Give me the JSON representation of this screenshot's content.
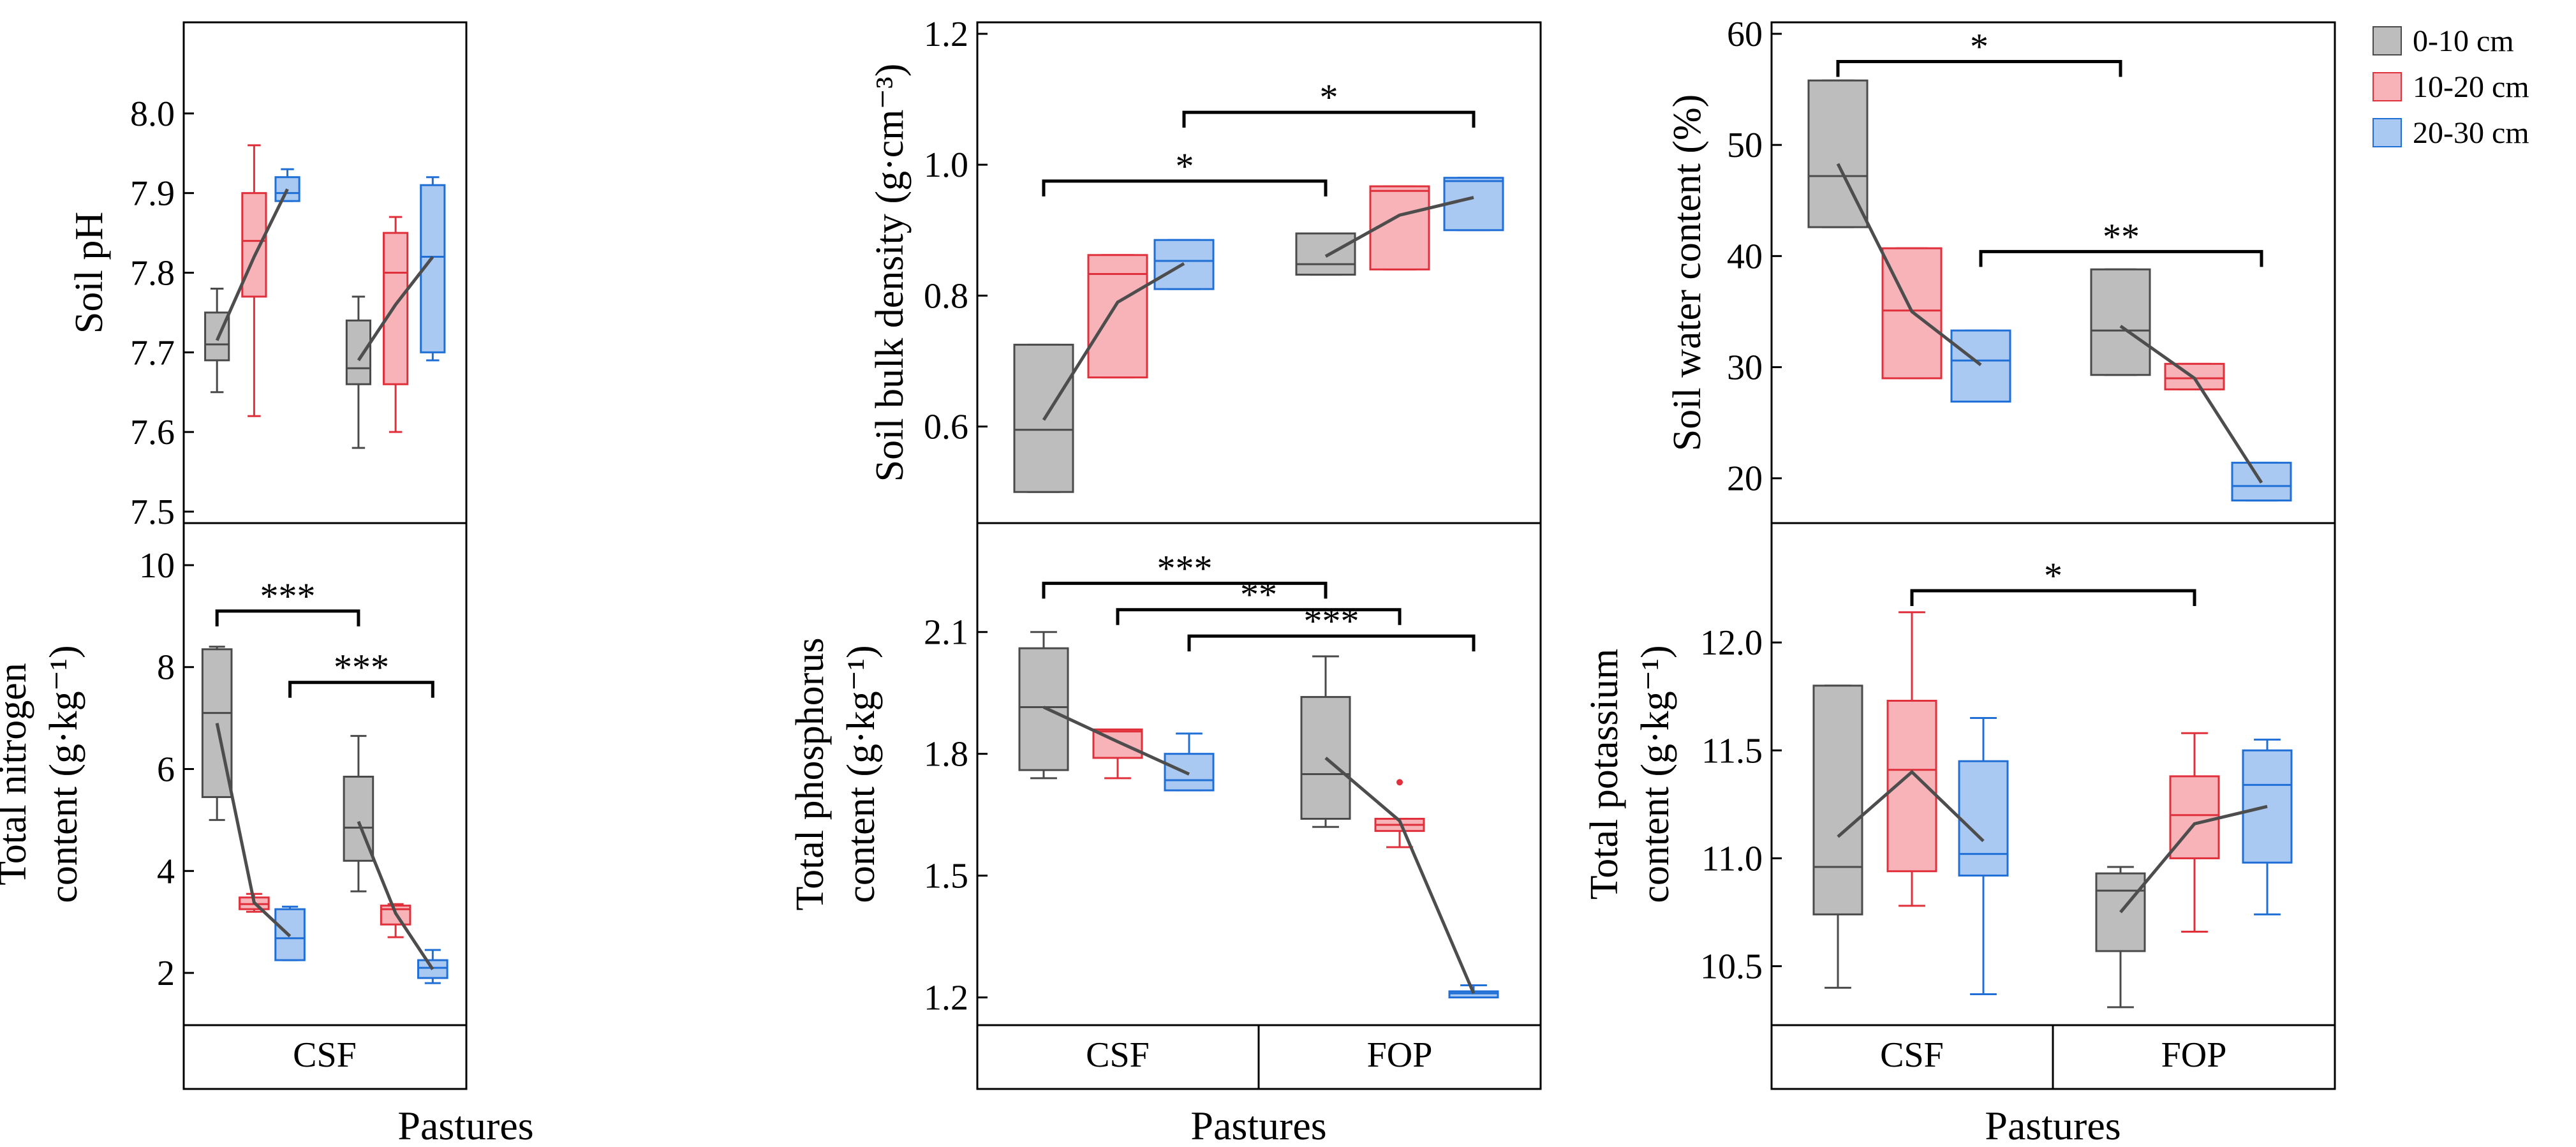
{
  "x_axis_title": "Pastures",
  "groups": [
    "CSF",
    "FOP"
  ],
  "legend": [
    {
      "label": "0-10 cm",
      "fill": "#bdbdbd",
      "stroke": "#4a4a4a"
    },
    {
      "label": "10-20 cm",
      "fill": "#f7b3b8",
      "stroke": "#e0303b"
    },
    {
      "label": "20-30 cm",
      "fill": "#a9c9f3",
      "stroke": "#1f6fd6"
    }
  ],
  "trend_line_color": "#4d4d4d",
  "chart_data": [
    {
      "type": "box",
      "id": "ph",
      "ylabel": [
        "Soil pH"
      ],
      "ylim": [
        7.5,
        8.1
      ],
      "ticks": [
        7.5,
        7.6,
        7.7,
        7.8,
        7.9,
        8.0
      ],
      "tick_labels": [
        "7.5",
        "7.6",
        "7.7",
        "7.8",
        "7.9",
        "8.0"
      ],
      "boxes": [
        {
          "group": "CSF",
          "depth": "0-10 cm",
          "min": 7.65,
          "q1": 7.69,
          "median": 7.71,
          "q3": 7.75,
          "max": 7.78,
          "mean": 7.715
        },
        {
          "group": "CSF",
          "depth": "10-20 cm",
          "min": 7.62,
          "q1": 7.77,
          "median": 7.84,
          "q3": 7.9,
          "max": 7.96,
          "mean": 7.82
        },
        {
          "group": "CSF",
          "depth": "20-30 cm",
          "min": 7.89,
          "q1": 7.89,
          "median": 7.9,
          "q3": 7.92,
          "max": 7.93,
          "mean": 7.905
        },
        {
          "group": "FOP",
          "depth": "0-10 cm",
          "min": 7.58,
          "q1": 7.66,
          "median": 7.68,
          "q3": 7.74,
          "max": 7.77,
          "mean": 7.69
        },
        {
          "group": "FOP",
          "depth": "10-20 cm",
          "min": 7.6,
          "q1": 7.66,
          "median": 7.8,
          "q3": 7.85,
          "max": 7.87,
          "mean": 7.76
        },
        {
          "group": "FOP",
          "depth": "20-30 cm",
          "min": 7.69,
          "q1": 7.7,
          "median": 7.82,
          "q3": 7.91,
          "max": 7.92,
          "mean": 7.82
        }
      ],
      "outliers": [],
      "brackets": []
    },
    {
      "type": "box",
      "id": "bd",
      "ylabel": [
        "Soil bulk density (g·cm⁻³)"
      ],
      "ylim": [
        0.47,
        1.2
      ],
      "ticks": [
        0.6,
        0.8,
        1.0,
        1.2
      ],
      "tick_labels": [
        "0.6",
        "0.8",
        "1.0",
        "1.2"
      ],
      "boxes": [
        {
          "group": "CSF",
          "depth": "0-10 cm",
          "min": 0.5,
          "q1": 0.5,
          "median": 0.595,
          "q3": 0.725,
          "max": 0.725,
          "mean": 0.61
        },
        {
          "group": "CSF",
          "depth": "10-20 cm",
          "min": 0.675,
          "q1": 0.675,
          "median": 0.833,
          "q3": 0.862,
          "max": 0.862,
          "mean": 0.79
        },
        {
          "group": "CSF",
          "depth": "20-30 cm",
          "min": 0.81,
          "q1": 0.81,
          "median": 0.853,
          "q3": 0.885,
          "max": 0.885,
          "mean": 0.849
        },
        {
          "group": "FOP",
          "depth": "0-10 cm",
          "min": 0.832,
          "q1": 0.832,
          "median": 0.848,
          "q3": 0.895,
          "max": 0.895,
          "mean": 0.86
        },
        {
          "group": "FOP",
          "depth": "10-20 cm",
          "min": 0.84,
          "q1": 0.84,
          "median": 0.96,
          "q3": 0.967,
          "max": 0.967,
          "mean": 0.923
        },
        {
          "group": "FOP",
          "depth": "20-30 cm",
          "min": 0.9,
          "q1": 0.9,
          "median": 0.975,
          "q3": 0.98,
          "max": 0.98,
          "mean": 0.95
        }
      ],
      "outliers": [],
      "brackets": [
        {
          "from": "CSF 0-10 cm",
          "to": "FOP 0-10 cm",
          "level": 0.975,
          "label": "*"
        },
        {
          "from": "CSF 20-30 cm",
          "to": "FOP 20-30 cm",
          "level": 1.08,
          "label": "*"
        }
      ]
    },
    {
      "type": "box",
      "id": "swc",
      "ylabel": [
        "Soil water content (%)"
      ],
      "ylim": [
        17,
        60
      ],
      "ticks": [
        20,
        30,
        40,
        50,
        60
      ],
      "tick_labels": [
        "20",
        "30",
        "40",
        "50",
        "60"
      ],
      "boxes": [
        {
          "group": "CSF",
          "depth": "0-10 cm",
          "min": 42.6,
          "q1": 42.6,
          "median": 47.2,
          "q3": 55.8,
          "max": 55.8,
          "mean": 48.3
        },
        {
          "group": "CSF",
          "depth": "10-20 cm",
          "min": 29.0,
          "q1": 29.0,
          "median": 35.1,
          "q3": 40.7,
          "max": 40.7,
          "mean": 35.0
        },
        {
          "group": "CSF",
          "depth": "20-30 cm",
          "min": 26.9,
          "q1": 26.9,
          "median": 30.6,
          "q3": 33.3,
          "max": 33.3,
          "mean": 30.2
        },
        {
          "group": "FOP",
          "depth": "0-10 cm",
          "min": 29.3,
          "q1": 29.3,
          "median": 33.3,
          "q3": 38.8,
          "max": 38.8,
          "mean": 33.7
        },
        {
          "group": "FOP",
          "depth": "10-20 cm",
          "min": 28.0,
          "q1": 28.0,
          "median": 29.0,
          "q3": 30.3,
          "max": 30.3,
          "mean": 29.0
        },
        {
          "group": "FOP",
          "depth": "20-30 cm",
          "min": 18.0,
          "q1": 18.0,
          "median": 19.3,
          "q3": 21.4,
          "max": 21.4,
          "mean": 19.6
        }
      ],
      "outliers": [],
      "brackets": [
        {
          "from": "CSF 0-10 cm",
          "to": "FOP 0-10 cm",
          "level": 57.5,
          "label": "*"
        },
        {
          "from": "CSF 20-30 cm",
          "to": "FOP 20-30 cm",
          "level": 40.4,
          "label": "**"
        }
      ]
    },
    {
      "type": "box",
      "id": "tn",
      "ylabel": [
        "Total nitrogen",
        "content (g·kg⁻¹)"
      ],
      "ylim": [
        1.2,
        10.6
      ],
      "ticks": [
        2,
        4,
        6,
        8,
        10
      ],
      "tick_labels": [
        "2",
        "4",
        "6",
        "8",
        "10"
      ],
      "boxes": [
        {
          "group": "CSF",
          "depth": "0-10 cm",
          "min": 5.0,
          "q1": 5.45,
          "median": 7.1,
          "q3": 8.35,
          "max": 8.4,
          "mean": 6.9
        },
        {
          "group": "CSF",
          "depth": "10-20 cm",
          "min": 3.2,
          "q1": 3.25,
          "median": 3.35,
          "q3": 3.48,
          "max": 3.55,
          "mean": 3.38
        },
        {
          "group": "CSF",
          "depth": "20-30 cm",
          "min": 2.25,
          "q1": 2.25,
          "median": 2.68,
          "q3": 3.25,
          "max": 3.3,
          "mean": 2.72
        },
        {
          "group": "FOP",
          "depth": "0-10 cm",
          "min": 3.6,
          "q1": 4.2,
          "median": 4.85,
          "q3": 5.85,
          "max": 6.65,
          "mean": 4.97
        },
        {
          "group": "FOP",
          "depth": "10-20 cm",
          "min": 2.7,
          "q1": 2.95,
          "median": 3.25,
          "q3": 3.32,
          "max": 3.35,
          "mean": 3.17
        },
        {
          "group": "FOP",
          "depth": "20-30 cm",
          "min": 1.8,
          "q1": 1.9,
          "median": 2.1,
          "q3": 2.25,
          "max": 2.45,
          "mean": 2.07
        }
      ],
      "outliers": [],
      "brackets": [
        {
          "from": "CSF 0-10 cm",
          "to": "FOP 0-10 cm",
          "level": 9.1,
          "label": "***"
        },
        {
          "from": "CSF 20-30 cm",
          "to": "FOP 20-30 cm",
          "level": 7.7,
          "label": "***"
        }
      ]
    },
    {
      "type": "box",
      "id": "tp",
      "ylabel": [
        "Total phosphorus",
        "content (g·kg⁻¹)"
      ],
      "ylim": [
        1.16,
        2.34
      ],
      "ticks": [
        1.2,
        1.5,
        1.8,
        2.1
      ],
      "tick_labels": [
        "1.2",
        "1.5",
        "1.8",
        "2.1"
      ],
      "boxes": [
        {
          "group": "CSF",
          "depth": "0-10 cm",
          "min": 1.74,
          "q1": 1.76,
          "median": 1.915,
          "q3": 2.06,
          "max": 2.1,
          "mean": 1.915
        },
        {
          "group": "CSF",
          "depth": "10-20 cm",
          "min": 1.74,
          "q1": 1.79,
          "median": 1.855,
          "q3": 1.86,
          "max": 1.86,
          "mean": 1.83
        },
        {
          "group": "CSF",
          "depth": "20-30 cm",
          "min": 1.71,
          "q1": 1.71,
          "median": 1.735,
          "q3": 1.8,
          "max": 1.85,
          "mean": 1.75
        },
        {
          "group": "FOP",
          "depth": "0-10 cm",
          "min": 1.62,
          "q1": 1.64,
          "median": 1.75,
          "q3": 1.94,
          "max": 2.04,
          "mean": 1.79
        },
        {
          "group": "FOP",
          "depth": "10-20 cm",
          "min": 1.57,
          "q1": 1.61,
          "median": 1.625,
          "q3": 1.64,
          "max": 1.64,
          "mean": 1.635
        },
        {
          "group": "FOP",
          "depth": "20-30 cm",
          "min": 1.2,
          "q1": 1.2,
          "median": 1.21,
          "q3": 1.215,
          "max": 1.23,
          "mean": 1.21
        }
      ],
      "outliers": [
        {
          "group": "FOP",
          "depth": "10-20 cm",
          "value": 1.73
        }
      ],
      "brackets": [
        {
          "from": "CSF 0-10 cm",
          "to": "FOP 0-10 cm",
          "level": 2.22,
          "label": "***"
        },
        {
          "from": "CSF 10-20 cm",
          "to": "FOP 10-20 cm",
          "level": 2.155,
          "label": "**"
        },
        {
          "from": "CSF 20-30 cm",
          "to": "FOP 20-30 cm",
          "level": 2.09,
          "label": "***"
        }
      ]
    },
    {
      "type": "box",
      "id": "tk",
      "ylabel": [
        "Total potassium",
        "content (g·kg⁻¹)"
      ],
      "ylim": [
        10.28,
        12.5
      ],
      "ticks": [
        10.5,
        11.0,
        11.5,
        12.0
      ],
      "tick_labels": [
        "10.5",
        "11.0",
        "11.5",
        "12.0"
      ],
      "boxes": [
        {
          "group": "CSF",
          "depth": "0-10 cm",
          "min": 10.4,
          "q1": 10.74,
          "median": 10.96,
          "q3": 11.8,
          "max": 11.8,
          "mean": 11.1
        },
        {
          "group": "CSF",
          "depth": "10-20 cm",
          "min": 10.78,
          "q1": 10.94,
          "median": 11.41,
          "q3": 11.73,
          "max": 12.14,
          "mean": 11.4
        },
        {
          "group": "CSF",
          "depth": "20-30 cm",
          "min": 10.37,
          "q1": 10.92,
          "median": 11.02,
          "q3": 11.45,
          "max": 11.65,
          "mean": 11.08
        },
        {
          "group": "FOP",
          "depth": "0-10 cm",
          "min": 10.31,
          "q1": 10.57,
          "median": 10.85,
          "q3": 10.93,
          "max": 10.96,
          "mean": 10.75
        },
        {
          "group": "FOP",
          "depth": "10-20 cm",
          "min": 10.66,
          "q1": 11.0,
          "median": 11.2,
          "q3": 11.38,
          "max": 11.58,
          "mean": 11.16
        },
        {
          "group": "FOP",
          "depth": "20-30 cm",
          "min": 10.74,
          "q1": 10.98,
          "median": 11.34,
          "q3": 11.5,
          "max": 11.55,
          "mean": 11.24
        }
      ],
      "outliers": [],
      "brackets": [
        {
          "from": "CSF 10-20 cm",
          "to": "FOP 10-20 cm",
          "level": 12.24,
          "label": "*"
        }
      ]
    }
  ]
}
